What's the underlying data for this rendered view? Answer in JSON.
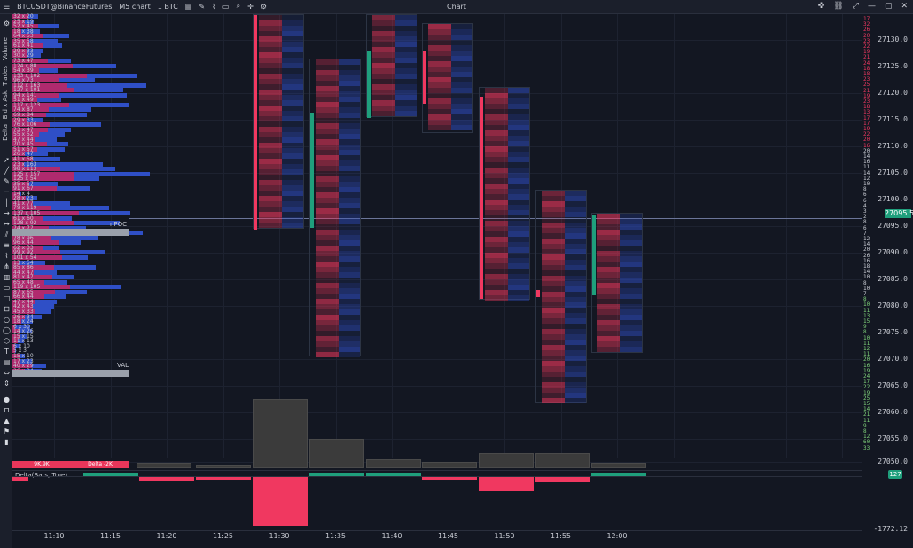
{
  "titlebar": {
    "symbol": "BTCUSDT@BinanceFutures",
    "timeframe": "M5 chart",
    "volume": "1 BTC",
    "window_title": "Chart"
  },
  "left_panel_labels": [
    "Volume",
    "Trades",
    "Bid x Ask",
    "Delta"
  ],
  "price_axis": {
    "labels": [
      "27130.0",
      "27125.0",
      "27120.0",
      "27115.0",
      "27110.0",
      "27105.0",
      "27100.0",
      "27095.0",
      "27090.0",
      "27085.0",
      "27080.0",
      "27075.0",
      "27070.0",
      "27065.0",
      "27060.0",
      "27055.0",
      "27050.0"
    ],
    "current_price": "27095.5",
    "delta_value": "127",
    "delta_min": "-1772.12"
  },
  "profile": {
    "rows": [
      "32 x 20",
      "25 x 19",
      "52 x 45",
      "18 x 38",
      "64 x 53",
      "35 x 58",
      "61 x 41",
      "29 x 33",
      "30 x 29",
      "73 x 47",
      "124 x 88",
      "54 x 39",
      "153 x 102",
      "96 x 73",
      "112 x 163",
      "127 x 101",
      "94 x 141",
      "51 x 49",
      "117 x 123",
      "74 x 87",
      "69 x 84",
      "29 x 33",
      "76 x 106",
      "73 x 47",
      "55 x 52",
      "47 x 44",
      "70 x 45",
      "51 x 57",
      "26 x 47",
      "41 x 58",
      "23 x 163",
      "98 x 113",
      "125 x 157",
      "125 x 54",
      "35 x 57",
      "91 x 67",
      "14 x 4",
      "28 x 23",
      "41 x 77",
      "79 x 119",
      "137 x 105",
      "61 x 60",
      "128 x 92",
      "74 x 77",
      "131 x 137",
      "78 x 96",
      "96 x 44",
      "62 x 33",
      "99 x 92",
      "101 x 54",
      "13 x 54",
      "85 x 86",
      "44 x 47",
      "81 x 47",
      "65 x 48",
      "119 x 105",
      "87 x 65",
      "66 x 44",
      "47 x 44",
      "42 x 43",
      "45 x 33",
      "26 x 34",
      "18 x 24",
      "6 x 30",
      "14 x 26",
      "15 x 15",
      "11 x 13",
      "6 x 10",
      "5 x 3",
      "15 x 10",
      "17 x 23",
      "40 x 29",
      "26 x 34"
    ],
    "poc_label": "nPOC",
    "val_label": "VAL"
  },
  "volume_summaries": [
    "9K.9K",
    "Delta -2K"
  ],
  "delta_pane": {
    "title": "Delta(Bars, True)"
  },
  "time_axis": [
    "11:10",
    "11:15",
    "11:20",
    "11:25",
    "11:30",
    "11:35",
    "11:40",
    "11:45",
    "11:50",
    "11:55",
    "12:00"
  ],
  "colors": {
    "bid": "#e8365a",
    "ask": "#2f4fc6",
    "up": "#1f9f7c",
    "down": "#f03860",
    "background": "#131722",
    "volume_bar": "#3b3b3b"
  },
  "right_edge_volumes": [
    "17",
    "32",
    "26",
    "20",
    "23",
    "22",
    "19",
    "21",
    "24",
    "18",
    "18",
    "23",
    "25",
    "21",
    "19",
    "23",
    "18",
    "13",
    "17",
    "17",
    "19",
    "22",
    "20",
    "16",
    "20",
    "14",
    "16",
    "11",
    "14",
    "12",
    "10",
    "8",
    "6",
    "6",
    "4",
    "3",
    "2",
    "8",
    "6",
    "7",
    "12",
    "14",
    "20",
    "26",
    "16",
    "18",
    "14",
    "10",
    "8",
    "10",
    "7",
    "8",
    "10",
    "11",
    "13",
    "15",
    "9",
    "8",
    "10",
    "11",
    "12",
    "11",
    "20",
    "16",
    "19",
    "24",
    "17",
    "22",
    "19",
    "25",
    "15",
    "14",
    "21",
    "11",
    "9",
    "8",
    "12",
    "60",
    "33"
  ]
}
